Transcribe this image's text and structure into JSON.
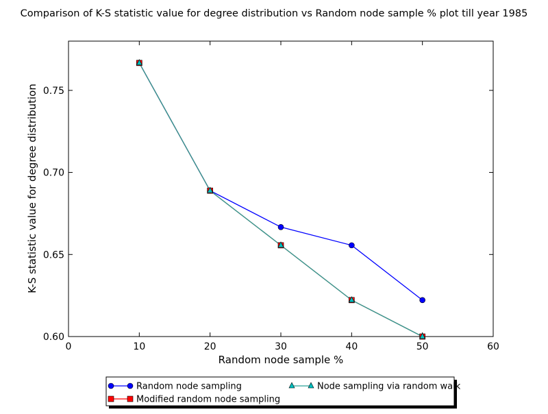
{
  "chart_data": {
    "type": "line",
    "title": "Comparison of K-S statistic value for degree distribution vs Random node sample % plot till year 1985",
    "xlabel": "Random node sample %",
    "ylabel": "K-S statistic value for degree distribution",
    "xlim": [
      0,
      60
    ],
    "ylim": [
      0.6,
      0.78
    ],
    "xticks": [
      0,
      10,
      20,
      30,
      40,
      50,
      60
    ],
    "xtick_labels": [
      "0",
      "10",
      "20",
      "30",
      "40",
      "50",
      "60"
    ],
    "yticks": [
      0.6,
      0.65,
      0.7,
      0.75
    ],
    "ytick_labels": [
      "0.60",
      "0.65",
      "0.70",
      "0.75"
    ],
    "x": [
      10,
      20,
      30,
      40,
      50
    ],
    "grid": false,
    "legend_position": "below plot, two columns",
    "series": [
      {
        "name": "Random node sampling",
        "marker": "circle",
        "color": "#0000ff",
        "marker_fill": "#0000ff",
        "values": [
          0.7667,
          0.6889,
          0.6667,
          0.6556,
          0.6222
        ]
      },
      {
        "name": "Modified random node sampling",
        "marker": "square",
        "color": "#ff0000",
        "marker_fill": "#ff0000",
        "values": [
          0.7667,
          0.6889,
          0.6556,
          0.6222,
          0.6
        ]
      },
      {
        "name": "Node sampling via random walk",
        "marker": "triangle",
        "color": "#2aa198",
        "marker_fill": "#00bfbf",
        "values": [
          0.7667,
          0.6889,
          0.6556,
          0.6222,
          0.6
        ]
      }
    ]
  }
}
